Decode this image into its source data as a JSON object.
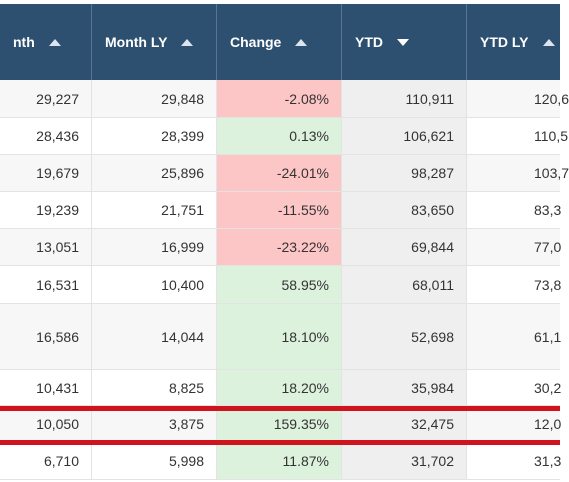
{
  "headers": [
    {
      "label": "nth",
      "sort": "up"
    },
    {
      "label": "Month LY",
      "sort": "up"
    },
    {
      "label": "Change",
      "sort": "up"
    },
    {
      "label": "YTD",
      "sort": "down"
    },
    {
      "label": "YTD LY",
      "sort": "up"
    }
  ],
  "rows": [
    {
      "month": "29,227",
      "month_ly": "29,848",
      "change": "-2.08%",
      "change_sign": "neg",
      "ytd": "110,911",
      "ytd_ly": "120,6"
    },
    {
      "month": "28,436",
      "month_ly": "28,399",
      "change": "0.13%",
      "change_sign": "pos",
      "ytd": "106,621",
      "ytd_ly": "110,5"
    },
    {
      "month": "19,679",
      "month_ly": "25,896",
      "change": "-24.01%",
      "change_sign": "neg",
      "ytd": "98,287",
      "ytd_ly": "103,7"
    },
    {
      "month": "19,239",
      "month_ly": "21,751",
      "change": "-11.55%",
      "change_sign": "neg",
      "ytd": "83,650",
      "ytd_ly": "83,3"
    },
    {
      "month": "13,051",
      "month_ly": "16,999",
      "change": "-23.22%",
      "change_sign": "neg",
      "ytd": "69,844",
      "ytd_ly": "77,0"
    },
    {
      "month": "16,531",
      "month_ly": "10,400",
      "change": "58.95%",
      "change_sign": "pos",
      "ytd": "68,011",
      "ytd_ly": "73,8"
    },
    {
      "month": "16,586",
      "month_ly": "14,044",
      "change": "18.10%",
      "change_sign": "pos",
      "ytd": "52,698",
      "ytd_ly": "61,1"
    },
    {
      "month": "10,431",
      "month_ly": "8,825",
      "change": "18.20%",
      "change_sign": "pos",
      "ytd": "35,984",
      "ytd_ly": "30,2"
    },
    {
      "month": "10,050",
      "month_ly": "3,875",
      "change": "159.35%",
      "change_sign": "pos",
      "ytd": "32,475",
      "ytd_ly": "12,0"
    },
    {
      "month": "6,710",
      "month_ly": "5,998",
      "change": "11.87%",
      "change_sign": "pos",
      "ytd": "31,702",
      "ytd_ly": "31,3"
    }
  ],
  "colors": {
    "header": "#2e5070",
    "negative": "#fdc6c6",
    "positive": "#ddf2dd",
    "highlight": "#d0141e"
  }
}
